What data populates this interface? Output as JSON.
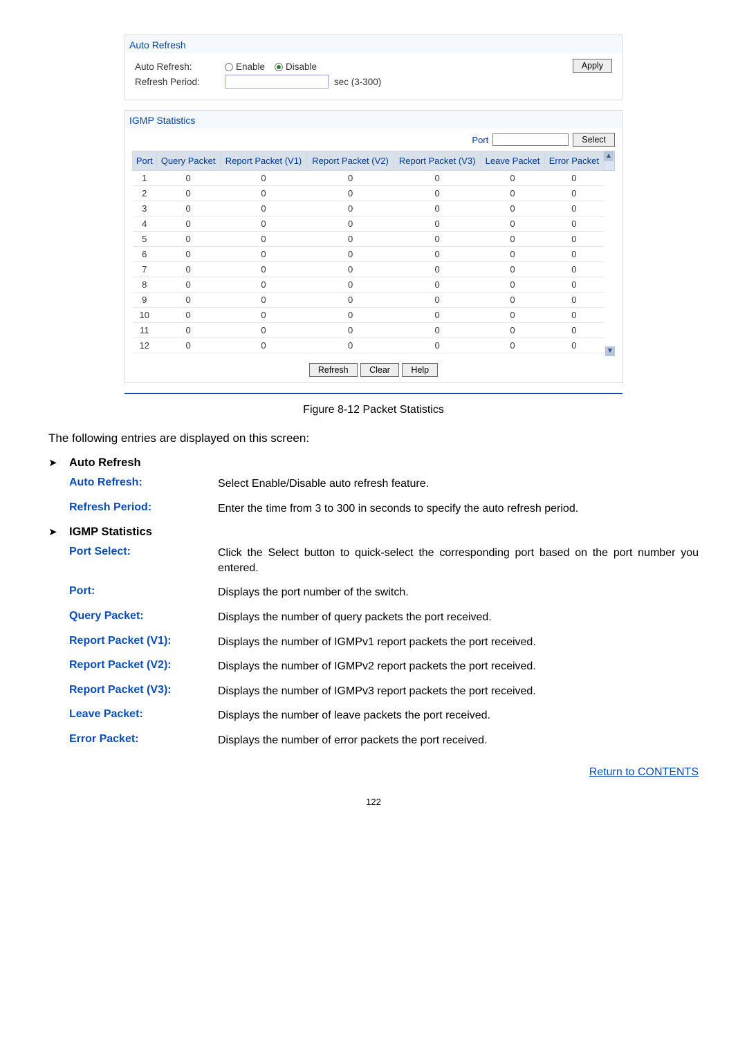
{
  "figure": {
    "autoRefresh": {
      "panelTitle": "Auto Refresh",
      "labelAutoRefresh": "Auto Refresh:",
      "enable": "Enable",
      "disable": "Disable",
      "labelRefreshPeriod": "Refresh Period:",
      "secHint": "sec (3-300)",
      "applyBtn": "Apply"
    },
    "igmp": {
      "panelTitle": "IGMP Statistics",
      "portLabel": "Port",
      "selectBtn": "Select",
      "columns": [
        "Port",
        "Query Packet",
        "Report Packet (V1)",
        "Report Packet (V2)",
        "Report Packet (V3)",
        "Leave Packet",
        "Error Packet"
      ],
      "rows": [
        [
          "1",
          "0",
          "0",
          "0",
          "0",
          "0",
          "0"
        ],
        [
          "2",
          "0",
          "0",
          "0",
          "0",
          "0",
          "0"
        ],
        [
          "3",
          "0",
          "0",
          "0",
          "0",
          "0",
          "0"
        ],
        [
          "4",
          "0",
          "0",
          "0",
          "0",
          "0",
          "0"
        ],
        [
          "5",
          "0",
          "0",
          "0",
          "0",
          "0",
          "0"
        ],
        [
          "6",
          "0",
          "0",
          "0",
          "0",
          "0",
          "0"
        ],
        [
          "7",
          "0",
          "0",
          "0",
          "0",
          "0",
          "0"
        ],
        [
          "8",
          "0",
          "0",
          "0",
          "0",
          "0",
          "0"
        ],
        [
          "9",
          "0",
          "0",
          "0",
          "0",
          "0",
          "0"
        ],
        [
          "10",
          "0",
          "0",
          "0",
          "0",
          "0",
          "0"
        ],
        [
          "11",
          "0",
          "0",
          "0",
          "0",
          "0",
          "0"
        ],
        [
          "12",
          "0",
          "0",
          "0",
          "0",
          "0",
          "0"
        ]
      ],
      "refreshBtn": "Refresh",
      "clearBtn": "Clear",
      "helpBtn": "Help"
    },
    "caption": "Figure 8-12 Packet Statistics"
  },
  "doc": {
    "intro": "The following entries are displayed on this screen:",
    "marker": "➤",
    "sections": [
      {
        "title": "Auto Refresh",
        "items": [
          {
            "label": "Auto Refresh:",
            "text": "Select Enable/Disable auto refresh feature."
          },
          {
            "label": "Refresh Period:",
            "text": "Enter the time from 3 to 300 in seconds to specify the auto refresh period."
          }
        ]
      },
      {
        "title": "IGMP Statistics",
        "items": [
          {
            "label": "Port Select:",
            "text": "Click the Select button to quick-select the corresponding port based on the port number you entered."
          },
          {
            "label": "Port:",
            "text": "Displays the port number of the switch."
          },
          {
            "label": "Query Packet:",
            "text": "Displays the number of query packets the port received."
          },
          {
            "label": "Report Packet (V1):",
            "text": "Displays the number of IGMPv1 report packets the port received."
          },
          {
            "label": "Report Packet (V2):",
            "text": "Displays the number of IGMPv2 report packets the port received."
          },
          {
            "label": "Report Packet (V3):",
            "text": "Displays the number of IGMPv3 report packets the port received."
          },
          {
            "label": "Leave Packet:",
            "text": "Displays the number of leave packets the port received."
          },
          {
            "label": "Error Packet:",
            "text": "Displays the number of error packets the port received."
          }
        ]
      }
    ],
    "returnLink": "Return to CONTENTS",
    "pageNumber": "122"
  },
  "scroll": {
    "up": "▲",
    "down": "▼"
  }
}
